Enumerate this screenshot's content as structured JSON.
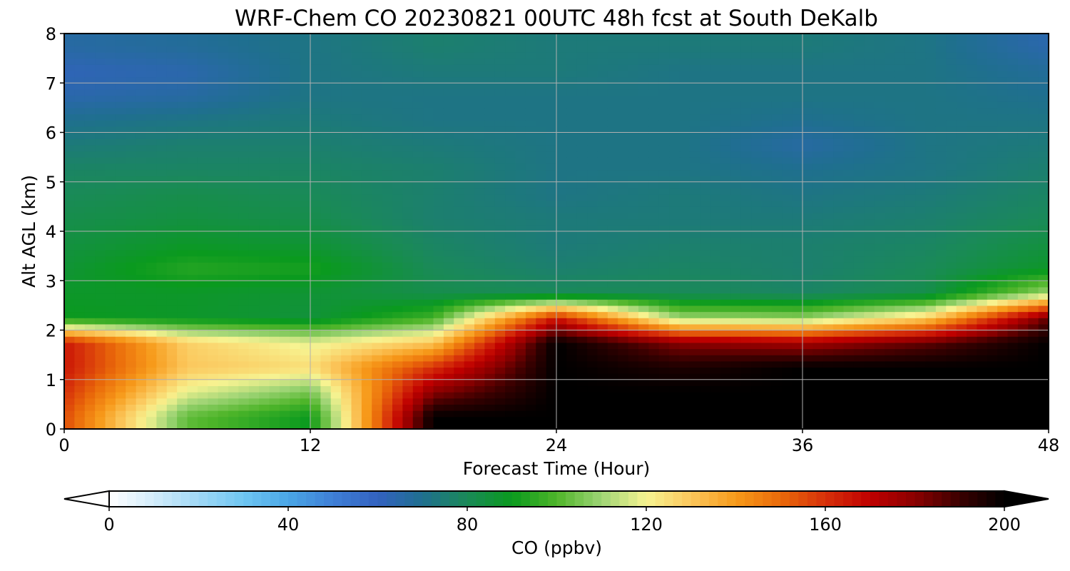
{
  "chart_data": {
    "type": "heatmap",
    "title": "WRF-Chem CO  20230821 00UTC 48h fcst at South DeKalb",
    "xlabel": "Forecast Time (Hour)",
    "ylabel": "Alt AGL (km)",
    "xlim": [
      0,
      48
    ],
    "ylim": [
      0,
      8
    ],
    "xticks": [
      0,
      12,
      24,
      36,
      48
    ],
    "yticks": [
      0,
      1,
      2,
      3,
      4,
      5,
      6,
      7,
      8
    ],
    "grid": true,
    "colorbar": {
      "label": "CO  (ppbv)",
      "range": [
        0,
        200
      ],
      "ticks": [
        0,
        40,
        80,
        120,
        160,
        200
      ],
      "extend": "both",
      "orientation": "horizontal",
      "colors": [
        "#ffffff",
        "#d2ecfa",
        "#a0d8f5",
        "#6fc6f2",
        "#4aa6e6",
        "#3f7fd6",
        "#3362c0",
        "#1f6f8f",
        "#1a8a58",
        "#0a9a1e",
        "#4fb52a",
        "#9ed475",
        "#f7f391",
        "#fbc75c",
        "#f79a1a",
        "#ea6a0a",
        "#d6300a",
        "#bf0000",
        "#8a0000",
        "#3a0000",
        "#000000"
      ]
    },
    "x": [
      0,
      6,
      12,
      18,
      24,
      30,
      36,
      42,
      48
    ],
    "y": [
      0.25,
      0.75,
      1.25,
      1.75,
      2.25,
      2.75,
      3.25,
      3.75,
      4.25,
      4.75,
      5.25,
      5.75,
      6.25,
      6.75,
      7.25,
      7.75
    ],
    "values": [
      [
        155,
        102,
        90,
        200,
        200,
        200,
        200,
        200,
        200
      ],
      [
        160,
        118,
        105,
        180,
        200,
        200,
        200,
        200,
        200
      ],
      [
        165,
        130,
        125,
        160,
        200,
        195,
        200,
        200,
        200
      ],
      [
        165,
        128,
        118,
        130,
        200,
        180,
        175,
        185,
        200
      ],
      [
        90,
        88,
        85,
        98,
        165,
        110,
        108,
        128,
        185
      ],
      [
        88,
        88,
        86,
        82,
        80,
        80,
        78,
        82,
        110
      ],
      [
        86,
        94,
        92,
        80,
        76,
        78,
        76,
        80,
        88
      ],
      [
        84,
        88,
        86,
        78,
        74,
        76,
        76,
        78,
        84
      ],
      [
        82,
        84,
        82,
        76,
        74,
        74,
        74,
        76,
        80
      ],
      [
        80,
        82,
        80,
        76,
        72,
        74,
        72,
        74,
        78
      ],
      [
        78,
        78,
        78,
        76,
        72,
        72,
        70,
        72,
        76
      ],
      [
        74,
        76,
        76,
        74,
        72,
        72,
        66,
        72,
        74
      ],
      [
        70,
        72,
        74,
        72,
        72,
        72,
        70,
        72,
        72
      ],
      [
        64,
        66,
        72,
        72,
        72,
        72,
        72,
        72,
        70
      ],
      [
        62,
        64,
        72,
        74,
        74,
        72,
        72,
        72,
        68
      ],
      [
        66,
        68,
        72,
        76,
        74,
        74,
        74,
        72,
        64
      ]
    ]
  }
}
